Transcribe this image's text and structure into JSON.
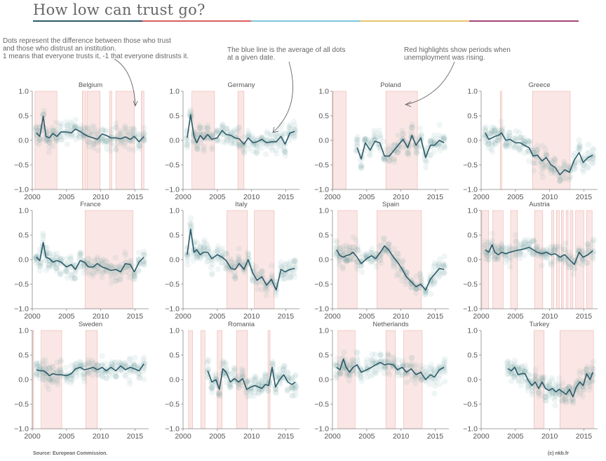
{
  "title": "How low can trust go?",
  "title_bar_colors": [
    "#2e5a6b",
    "#d95f5f",
    "#7fc6d9",
    "#e8c46a",
    "#a3457a"
  ],
  "annotations": {
    "dots": "Dots represent the difference between those who trust\nand those who distrust an institution.\n1 means that everyone trusts it, -1 that everyone distrusts it.",
    "line": "The blue line is the average of all dots\nat a given date.",
    "red": "Red highlights show periods when\nunemployment was rising."
  },
  "source": "Source: European Commission.",
  "copyright": "(c) nkb.fr",
  "colors": {
    "line": "#2b5a69",
    "dots": "#6f9a9d",
    "highlight": "#f5c9c5",
    "axis": "#888888",
    "text": "#555555"
  },
  "chart_data": [
    {
      "type": "scatter",
      "title": "Belgium",
      "xlim": [
        2000,
        2017
      ],
      "ylim": [
        -1,
        1
      ],
      "xticks": [
        "2000",
        "2005",
        "2010",
        "2015"
      ],
      "yticks": [
        "1.0",
        "0.5",
        "0.0",
        "−0.5",
        "−1.0"
      ],
      "highlights": [
        [
          2000.4,
          2003.6
        ],
        [
          2007.3,
          2007.8
        ],
        [
          2008.0,
          2009.9
        ],
        [
          2011.3,
          2011.6
        ],
        [
          2012.2,
          2014.9
        ],
        [
          2015.9,
          2016.3
        ]
      ],
      "average": {
        "x": [
          2000.6,
          2001.1,
          2001.6,
          2002.0,
          2002.5,
          2003.0,
          2003.6,
          2004.2,
          2005.0,
          2005.7,
          2006.3,
          2007.0,
          2007.6,
          2008.2,
          2008.9,
          2009.5,
          2010.2,
          2010.8,
          2011.5,
          2012.2,
          2012.9,
          2013.6,
          2014.3,
          2014.9,
          2015.6,
          2016.3
        ],
        "y": [
          0.15,
          0.08,
          0.49,
          0.08,
          0.05,
          0.14,
          0.08,
          0.17,
          0.17,
          0.15,
          0.23,
          0.18,
          0.12,
          0.08,
          0.05,
          0.02,
          0.13,
          0.1,
          0.05,
          0.05,
          0.03,
          0.07,
          0.02,
          0.08,
          -0.03,
          0.08
        ]
      }
    },
    {
      "type": "scatter",
      "title": "Germany",
      "xlim": [
        2000,
        2017
      ],
      "ylim": [
        -1,
        1
      ],
      "xticks": [
        "2000",
        "2005",
        "2010",
        "2015"
      ],
      "yticks": [
        "1.0",
        "0.5",
        "0.0",
        "−0.5",
        "−1.0"
      ],
      "highlights": [
        [
          2001.3,
          2004.6
        ],
        [
          2008.0,
          2008.9
        ]
      ],
      "average": {
        "x": [
          2000.6,
          2001.1,
          2001.6,
          2002.0,
          2002.5,
          2003.0,
          2003.6,
          2004.2,
          2005.0,
          2005.7,
          2006.3,
          2007.0,
          2007.6,
          2008.2,
          2008.9,
          2009.5,
          2010.2,
          2010.8,
          2011.5,
          2012.2,
          2012.9,
          2013.6,
          2014.3,
          2014.9,
          2015.6,
          2016.3
        ],
        "y": [
          0.05,
          0.52,
          0.08,
          -0.05,
          0.1,
          0.02,
          0.12,
          0.02,
          0.05,
          0.2,
          0.12,
          0.1,
          0.05,
          0.03,
          -0.08,
          0.05,
          -0.05,
          -0.03,
          0.02,
          -0.05,
          -0.03,
          -0.03,
          0.08,
          -0.08,
          0.15,
          0.18
        ]
      }
    },
    {
      "type": "scatter",
      "title": "Poland",
      "xlim": [
        2000,
        2017
      ],
      "ylim": [
        -1,
        1
      ],
      "xticks": [
        "2000",
        "2005",
        "2010",
        "2015"
      ],
      "yticks": [
        "1.0",
        "0.5",
        "0.0",
        "−0.5",
        "−1.0"
      ],
      "highlights": [
        [
          2000.1,
          2002.0
        ],
        [
          2007.8,
          2012.4
        ]
      ],
      "average": {
        "x": [
          2003.6,
          2004.2,
          2004.8,
          2005.5,
          2006.2,
          2006.9,
          2007.6,
          2008.3,
          2009.0,
          2009.6,
          2010.3,
          2011.0,
          2011.6,
          2012.2,
          2012.9,
          2013.6,
          2014.3,
          2014.9,
          2015.6,
          2016.3
        ],
        "y": [
          -0.15,
          -0.38,
          -0.05,
          -0.2,
          -0.02,
          -0.05,
          -0.32,
          -0.32,
          -0.2,
          -0.1,
          0.02,
          -0.15,
          0.1,
          -0.1,
          0.05,
          -0.35,
          -0.1,
          -0.1,
          0.0,
          -0.05
        ]
      }
    },
    {
      "type": "scatter",
      "title": "Greece",
      "xlim": [
        2000,
        2017
      ],
      "ylim": [
        -1,
        1
      ],
      "xticks": [
        "2000",
        "2005",
        "2010",
        "2015"
      ],
      "yticks": [
        "1.0",
        "0.5",
        "0.0",
        "−0.5",
        "−1.0"
      ],
      "highlights": [
        [
          2002.8,
          2003.0
        ],
        [
          2007.5,
          2013.0
        ]
      ],
      "average": {
        "x": [
          2000.6,
          2001.1,
          2001.6,
          2002.0,
          2002.5,
          2003.0,
          2003.6,
          2004.2,
          2005.0,
          2005.7,
          2006.3,
          2007.0,
          2007.6,
          2008.2,
          2008.9,
          2009.5,
          2010.2,
          2010.8,
          2011.5,
          2012.2,
          2012.9,
          2013.6,
          2014.3,
          2014.9,
          2015.6,
          2016.3
        ],
        "y": [
          0.15,
          0.02,
          0.05,
          0.08,
          0.1,
          0.15,
          0.0,
          0.02,
          -0.05,
          -0.05,
          -0.1,
          -0.15,
          -0.32,
          -0.3,
          -0.42,
          -0.35,
          -0.5,
          -0.55,
          -0.7,
          -0.6,
          -0.65,
          -0.4,
          -0.25,
          -0.45,
          -0.35,
          -0.3
        ]
      }
    },
    {
      "type": "scatter",
      "title": "France",
      "xlim": [
        2000,
        2017
      ],
      "ylim": [
        -1,
        1
      ],
      "xticks": [
        "2000",
        "2005",
        "2010",
        "2015"
      ],
      "yticks": [
        "1.0",
        "0.5",
        "0.0",
        "−0.5",
        "−1.0"
      ],
      "highlights": [
        [
          2007.7,
          2014.7
        ]
      ],
      "average": {
        "x": [
          2000.6,
          2001.1,
          2001.6,
          2002.0,
          2002.5,
          2003.0,
          2003.6,
          2004.2,
          2005.0,
          2005.7,
          2006.3,
          2007.0,
          2007.6,
          2008.2,
          2008.9,
          2009.5,
          2010.2,
          2010.8,
          2011.5,
          2012.2,
          2012.9,
          2013.6,
          2014.3,
          2014.9,
          2015.6,
          2016.3
        ],
        "y": [
          0.05,
          -0.02,
          0.35,
          0.05,
          0.02,
          -0.05,
          -0.02,
          -0.05,
          -0.15,
          -0.1,
          -0.2,
          -0.02,
          -0.05,
          -0.15,
          -0.15,
          -0.08,
          -0.15,
          -0.18,
          -0.22,
          -0.2,
          -0.25,
          -0.08,
          -0.1,
          -0.25,
          -0.05,
          0.05
        ]
      }
    },
    {
      "type": "scatter",
      "title": "Italy",
      "xlim": [
        2000,
        2017
      ],
      "ylim": [
        -1,
        1
      ],
      "xticks": [
        "2000",
        "2005",
        "2010",
        "2015"
      ],
      "yticks": [
        "1.0",
        "0.5",
        "0.0",
        "−0.5",
        "−1.0"
      ],
      "highlights": [
        [
          2006.4,
          2009.4
        ],
        [
          2010.4,
          2013.3
        ]
      ],
      "average": {
        "x": [
          2000.6,
          2001.1,
          2001.6,
          2002.0,
          2002.5,
          2003.0,
          2003.6,
          2004.2,
          2005.0,
          2005.7,
          2006.3,
          2007.0,
          2007.6,
          2008.2,
          2008.9,
          2009.5,
          2010.2,
          2010.8,
          2011.5,
          2012.2,
          2012.9,
          2013.6,
          2014.3,
          2014.9,
          2015.6,
          2016.3
        ],
        "y": [
          0.1,
          0.62,
          0.15,
          0.2,
          0.1,
          0.15,
          0.15,
          0.02,
          0.1,
          0.05,
          -0.02,
          -0.18,
          -0.2,
          -0.08,
          -0.2,
          0.0,
          -0.28,
          -0.42,
          -0.35,
          -0.52,
          -0.4,
          -0.62,
          -0.2,
          -0.25,
          -0.2,
          -0.18
        ]
      }
    },
    {
      "type": "scatter",
      "title": "Spain",
      "xlim": [
        2000,
        2017
      ],
      "ylim": [
        -1,
        1
      ],
      "xticks": [
        "2000",
        "2005",
        "2010",
        "2015"
      ],
      "yticks": [
        "1.0",
        "0.5",
        "0.0",
        "−0.5",
        "−1.0"
      ],
      "highlights": [
        [
          2000.8,
          2003.6
        ],
        [
          2006.5,
          2013.0
        ]
      ],
      "average": {
        "x": [
          2000.6,
          2001.1,
          2001.6,
          2002.0,
          2002.5,
          2003.0,
          2003.6,
          2004.2,
          2005.0,
          2005.7,
          2006.3,
          2007.0,
          2007.6,
          2008.2,
          2008.9,
          2009.5,
          2010.2,
          2010.8,
          2011.5,
          2012.2,
          2012.9,
          2013.6,
          2014.3,
          2014.9,
          2015.6,
          2016.3
        ],
        "y": [
          0.2,
          0.08,
          0.05,
          0.08,
          0.1,
          0.15,
          0.05,
          -0.08,
          0.02,
          0.08,
          0.02,
          0.15,
          0.28,
          0.2,
          0.05,
          -0.05,
          -0.2,
          -0.35,
          -0.45,
          -0.55,
          -0.5,
          -0.62,
          -0.4,
          -0.3,
          -0.18,
          -0.2
        ]
      }
    },
    {
      "type": "scatter",
      "title": "Austria",
      "xlim": [
        2000,
        2017
      ],
      "ylim": [
        -1,
        1
      ],
      "xticks": [
        "2000",
        "2005",
        "2010",
        "2015"
      ],
      "yticks": [
        "1.0",
        "0.5",
        "0.0",
        "−0.5",
        "−1.0"
      ],
      "highlights": [
        [
          2000.1,
          2001.1
        ],
        [
          2001.7,
          2003.2
        ],
        [
          2004.3,
          2005.3
        ],
        [
          2007.8,
          2009.0
        ],
        [
          2010.3,
          2010.6
        ],
        [
          2011.0,
          2011.4
        ],
        [
          2011.7,
          2012.0
        ],
        [
          2012.4,
          2012.7
        ],
        [
          2013.0,
          2013.4
        ],
        [
          2013.8,
          2015.0
        ],
        [
          2015.4,
          2016.2
        ]
      ],
      "average": {
        "x": [
          2000.6,
          2001.1,
          2001.6,
          2002.0,
          2002.5,
          2003.0,
          2003.6,
          2004.2,
          2005.0,
          2005.7,
          2006.3,
          2007.0,
          2007.6,
          2008.2,
          2008.9,
          2009.5,
          2010.2,
          2010.8,
          2011.5,
          2012.2,
          2012.9,
          2013.6,
          2014.3,
          2014.9,
          2015.6,
          2016.3
        ],
        "y": [
          0.2,
          0.15,
          0.3,
          0.15,
          0.1,
          0.15,
          0.12,
          0.15,
          0.18,
          0.2,
          0.22,
          0.25,
          0.2,
          0.15,
          0.12,
          0.15,
          0.1,
          0.12,
          0.05,
          0.1,
          0.0,
          -0.1,
          0.15,
          0.05,
          0.1,
          0.18
        ]
      }
    },
    {
      "type": "scatter",
      "title": "Sweden",
      "xlim": [
        2000,
        2017
      ],
      "ylim": [
        -1,
        1
      ],
      "xticks": [
        "2000",
        "2005",
        "2010",
        "2015"
      ],
      "yticks": [
        "1.0",
        "0.5",
        "0.0",
        "−0.5",
        "−1.0"
      ],
      "highlights": [
        [
          2000.0,
          2000.2
        ],
        [
          2001.3,
          2004.3
        ],
        [
          2007.8,
          2009.5
        ]
      ],
      "average": {
        "x": [
          2000.6,
          2001.1,
          2001.6,
          2002.0,
          2002.5,
          2003.0,
          2003.6,
          2004.2,
          2005.0,
          2005.7,
          2006.3,
          2007.0,
          2007.6,
          2008.2,
          2008.9,
          2009.5,
          2010.2,
          2010.8,
          2011.5,
          2012.2,
          2012.9,
          2013.6,
          2014.3,
          2014.9,
          2015.6,
          2016.3
        ],
        "y": [
          0.2,
          0.18,
          0.18,
          0.15,
          0.08,
          0.12,
          0.1,
          0.1,
          0.08,
          0.12,
          0.22,
          0.25,
          0.2,
          0.22,
          0.25,
          0.2,
          0.25,
          0.18,
          0.25,
          0.18,
          0.28,
          0.2,
          0.25,
          0.22,
          0.18,
          0.32
        ]
      }
    },
    {
      "type": "scatter",
      "title": "Romania",
      "xlim": [
        2000,
        2017
      ],
      "ylim": [
        -1,
        1
      ],
      "xticks": [
        "2000",
        "2005",
        "2010",
        "2015"
      ],
      "yticks": [
        "1.0",
        "0.5",
        "0.0",
        "−0.5",
        "−1.0"
      ],
      "highlights": [
        [
          2000.8,
          2001.4
        ],
        [
          2002.6,
          2003.2
        ],
        [
          2005.0,
          2005.7
        ],
        [
          2007.8,
          2009.4
        ],
        [
          2012.4,
          2012.7
        ]
      ],
      "average": {
        "x": [
          2003.6,
          2004.2,
          2004.8,
          2005.3,
          2005.8,
          2006.3,
          2006.9,
          2007.5,
          2008.1,
          2008.7,
          2009.3,
          2009.9,
          2010.5,
          2011.0,
          2011.5,
          2012.0,
          2012.5,
          2013.0,
          2013.5,
          2014.1,
          2014.7,
          2015.3,
          2015.9,
          2016.4
        ],
        "y": [
          0.18,
          -0.05,
          0.0,
          -0.2,
          0.22,
          0.15,
          -0.05,
          0.02,
          -0.05,
          0.02,
          -0.2,
          -0.15,
          -0.12,
          -0.15,
          -0.18,
          -0.1,
          -0.12,
          0.25,
          -0.15,
          0.0,
          0.1,
          -0.05,
          -0.1,
          -0.05
        ]
      }
    },
    {
      "type": "scatter",
      "title": "Netherlands",
      "xlim": [
        2000,
        2017
      ],
      "ylim": [
        -1,
        1
      ],
      "xticks": [
        "2000",
        "2005",
        "2010",
        "2015"
      ],
      "yticks": [
        "1.0",
        "0.5",
        "0.0",
        "−0.5",
        "−1.0"
      ],
      "highlights": [
        [
          2000.8,
          2003.3
        ],
        [
          2007.8,
          2009.2
        ],
        [
          2010.4,
          2013.1
        ]
      ],
      "average": {
        "x": [
          2000.6,
          2001.1,
          2001.6,
          2002.0,
          2002.5,
          2003.0,
          2003.6,
          2004.2,
          2005.0,
          2005.7,
          2006.3,
          2007.0,
          2007.6,
          2008.2,
          2008.9,
          2009.5,
          2010.2,
          2010.8,
          2011.5,
          2012.2,
          2012.9,
          2013.6,
          2014.3,
          2014.9,
          2015.6,
          2016.3
        ],
        "y": [
          0.25,
          0.2,
          0.42,
          0.25,
          0.15,
          0.25,
          0.3,
          0.15,
          0.2,
          0.25,
          0.3,
          0.35,
          0.3,
          0.32,
          0.3,
          0.2,
          0.25,
          0.15,
          0.22,
          0.1,
          0.15,
          0.0,
          0.1,
          0.05,
          0.2,
          0.25
        ]
      }
    },
    {
      "type": "scatter",
      "title": "Turkey",
      "xlim": [
        2000,
        2017
      ],
      "ylim": [
        -1,
        1
      ],
      "xticks": [
        "2000",
        "2005",
        "2010",
        "2015"
      ],
      "yticks": [
        "1.0",
        "0.5",
        "0.0",
        "−0.5",
        "−1.0"
      ],
      "highlights": [
        [
          2007.7,
          2009.2
        ],
        [
          2011.5,
          2016.4
        ]
      ],
      "average": {
        "x": [
          2003.9,
          2004.4,
          2004.9,
          2005.4,
          2005.9,
          2006.4,
          2006.9,
          2007.4,
          2007.9,
          2008.4,
          2008.9,
          2009.4,
          2009.9,
          2010.4,
          2010.9,
          2011.4,
          2011.9,
          2012.4,
          2012.9,
          2013.4,
          2013.9,
          2014.4,
          2014.9,
          2015.4,
          2015.9,
          2016.3
        ],
        "y": [
          0.22,
          0.18,
          0.25,
          0.1,
          0.12,
          0.12,
          -0.02,
          -0.12,
          -0.05,
          -0.18,
          -0.05,
          -0.18,
          -0.22,
          -0.18,
          -0.25,
          -0.2,
          -0.25,
          -0.3,
          -0.2,
          -0.35,
          -0.15,
          -0.05,
          -0.12,
          0.12,
          0.0,
          0.15
        ]
      }
    }
  ]
}
